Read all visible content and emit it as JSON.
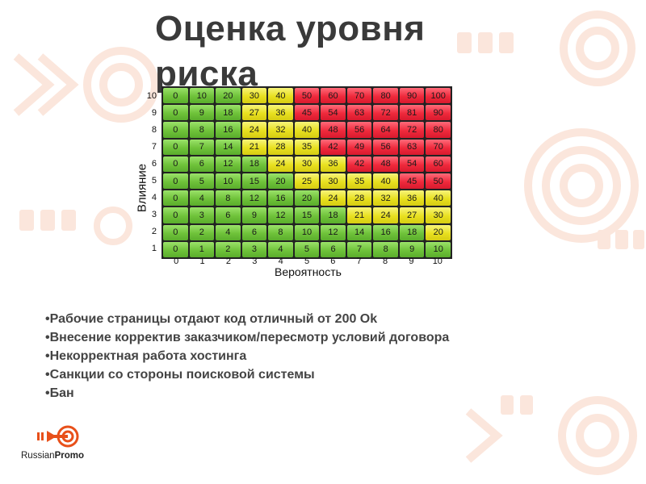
{
  "slide": {
    "title": "Оценка уровня риска"
  },
  "matrix": {
    "y_axis_label": "Влияние",
    "x_axis_label": "Вероятность",
    "y_ticks": [
      "10",
      "9",
      "8",
      "7",
      "6",
      "5",
      "4",
      "3",
      "2",
      "1"
    ],
    "x_ticks": [
      "0",
      "1",
      "2",
      "3",
      "4",
      "5",
      "6",
      "7",
      "8",
      "9",
      "10"
    ],
    "rows": [
      [
        "0",
        "10",
        "20",
        "30",
        "40",
        "50",
        "60",
        "70",
        "80",
        "90",
        "100"
      ],
      [
        "0",
        "9",
        "18",
        "27",
        "36",
        "45",
        "54",
        "63",
        "72",
        "81",
        "90"
      ],
      [
        "0",
        "8",
        "16",
        "24",
        "32",
        "40",
        "48",
        "56",
        "64",
        "72",
        "80"
      ],
      [
        "0",
        "7",
        "14",
        "21",
        "28",
        "35",
        "42",
        "49",
        "56",
        "63",
        "70"
      ],
      [
        "0",
        "6",
        "12",
        "18",
        "24",
        "30",
        "36",
        "42",
        "48",
        "54",
        "60"
      ],
      [
        "0",
        "5",
        "10",
        "15",
        "20",
        "25",
        "30",
        "35",
        "40",
        "45",
        "50"
      ],
      [
        "0",
        "4",
        "8",
        "12",
        "16",
        "20",
        "24",
        "28",
        "32",
        "36",
        "40"
      ],
      [
        "0",
        "3",
        "6",
        "9",
        "12",
        "15",
        "18",
        "21",
        "24",
        "27",
        "30"
      ],
      [
        "0",
        "2",
        "4",
        "6",
        "8",
        "10",
        "12",
        "14",
        "16",
        "18",
        "20"
      ],
      [
        "0",
        "1",
        "2",
        "3",
        "4",
        "5",
        "6",
        "7",
        "8",
        "9",
        "10"
      ]
    ],
    "row_levels": [
      "gggyyrrrrrr",
      "gggyyrrrrrr",
      "gggyyyrrrrr",
      "gggyyyrrrrr",
      "ggggyyyrrrr",
      "gggggyyyyrr",
      "ggggggyyyyy",
      "gggggggyyyy",
      "ggggggggggy",
      "ggggggggggg"
    ],
    "colors": {
      "low": "#6fc23a",
      "medium": "#e8e020",
      "high": "#ef2a3c"
    }
  },
  "bullets": [
    "Рабочие страницы отдают код отличный от 200 Ok",
    "Внесение корректив заказчиком/пересмотр условий договора",
    "Некорректная работа хостинга",
    "Санкции со стороны поисковой системы",
    "Бан"
  ],
  "logo": {
    "brand_part1": "Russian",
    "brand_part2": "Promo",
    "mark_icon": "target-arrow-icon",
    "accent_color": "#e8501a"
  }
}
